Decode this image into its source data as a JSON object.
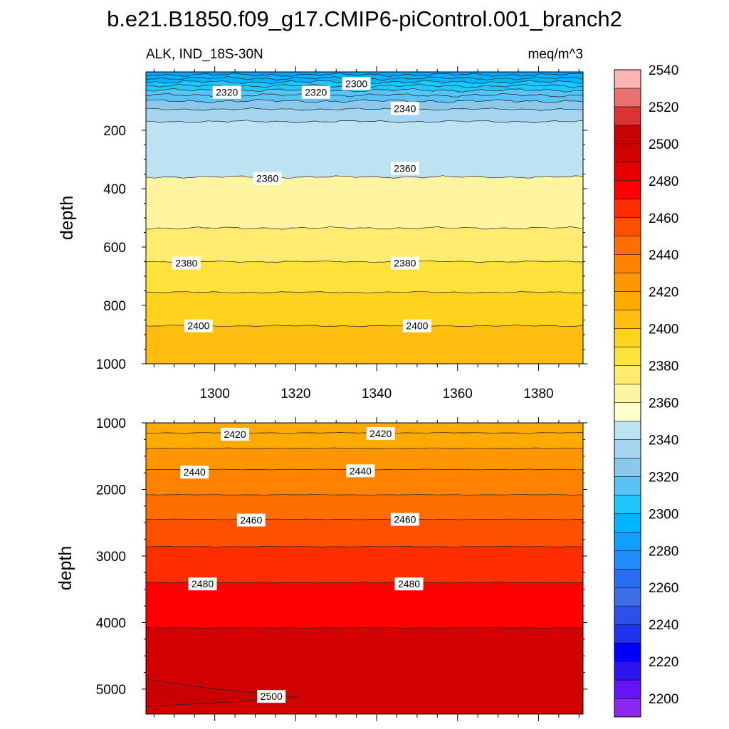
{
  "figure": {
    "title": "b.e21.B1850.f09_g17.CMIP6-piControl.001_branch2",
    "variable_label": "ALK, IND_18S-30N",
    "units_label": "meq/m^3"
  },
  "colors": {
    "palette": [
      "#8c28ef",
      "#6414f5",
      "#2d14f0",
      "#0000ff",
      "#1e32f0",
      "#2d50eb",
      "#3c6ee6",
      "#286ef5",
      "#1e8cff",
      "#0fa0ff",
      "#00b4ff",
      "#1ec8ff",
      "#5ac3f5",
      "#8cc8ec",
      "#a5d5f0",
      "#bde2f2",
      "#ffffcf",
      "#fff5a0",
      "#ffeb70",
      "#ffe13c",
      "#ffd21e",
      "#ffbe0f",
      "#ffaa00",
      "#ff9600",
      "#ff8200",
      "#ff6e00",
      "#ff5000",
      "#ff2d00",
      "#ff0000",
      "#e60000",
      "#d20000",
      "#c80000",
      "#dc3232",
      "#eb7070",
      "#ffb4b4"
    ]
  },
  "chart_data": [
    {
      "type": "contour",
      "panel": "upper",
      "x": [
        1283,
        1391
      ],
      "xticks": [
        1300,
        1320,
        1340,
        1360,
        1380
      ],
      "ylabel": "depth",
      "ylim": [
        0,
        1000
      ],
      "yticks": [
        200,
        400,
        600,
        800,
        1000
      ],
      "contour_depths": [
        {
          "level": 2290,
          "depth": 10
        },
        {
          "level": 2295,
          "depth": 22
        },
        {
          "level": 2300,
          "depth": 35
        },
        {
          "level": 2305,
          "depth": 48
        },
        {
          "level": 2310,
          "depth": 63
        },
        {
          "level": 2315,
          "depth": 80
        },
        {
          "level": 2320,
          "depth": 100
        },
        {
          "level": 2330,
          "depth": 128
        },
        {
          "level": 2340,
          "depth": 170
        },
        {
          "level": 2360,
          "depth": 360
        },
        {
          "level": 2370,
          "depth": 535
        },
        {
          "level": 2380,
          "depth": 650
        },
        {
          "level": 2390,
          "depth": 755
        },
        {
          "level": 2400,
          "depth": 870
        }
      ],
      "bottom_level": 2405,
      "contour_labels": [
        {
          "text": "2320",
          "x": 1303,
          "depth": 70
        },
        {
          "text": "2320",
          "x": 1325,
          "depth": 70
        },
        {
          "text": "2300",
          "x": 1335,
          "depth": 40
        },
        {
          "text": "2340",
          "x": 1347,
          "depth": 125
        },
        {
          "text": "2360",
          "x": 1313,
          "depth": 365
        },
        {
          "text": "2360",
          "x": 1347,
          "depth": 330
        },
        {
          "text": "2380",
          "x": 1293,
          "depth": 655
        },
        {
          "text": "2380",
          "x": 1347,
          "depth": 655
        },
        {
          "text": "2400",
          "x": 1296,
          "depth": 870
        },
        {
          "text": "2400",
          "x": 1350,
          "depth": 870
        }
      ]
    },
    {
      "type": "contour",
      "panel": "lower",
      "x": [
        1283,
        1391
      ],
      "ylabel": "depth",
      "ylim": [
        1000,
        5375
      ],
      "yticks": [
        1000,
        2000,
        3000,
        4000,
        5000
      ],
      "contour_depths": [
        {
          "level": 2415,
          "depth": 1150
        },
        {
          "level": 2420,
          "depth": 1380
        },
        {
          "level": 2430,
          "depth": 1700
        },
        {
          "level": 2440,
          "depth": 2080
        },
        {
          "level": 2450,
          "depth": 2450
        },
        {
          "level": 2460,
          "depth": 2860
        },
        {
          "level": 2470,
          "depth": 3400
        },
        {
          "level": 2480,
          "depth": 4080
        }
      ],
      "top_level": 2412,
      "bottom_level": 2490,
      "wedge_level": 2500,
      "contour_labels": [
        {
          "text": "2420",
          "x": 1305,
          "depth": 1170
        },
        {
          "text": "2420",
          "x": 1341,
          "depth": 1160
        },
        {
          "text": "2440",
          "x": 1295,
          "depth": 1740
        },
        {
          "text": "2440",
          "x": 1336,
          "depth": 1720
        },
        {
          "text": "2460",
          "x": 1309,
          "depth": 2460
        },
        {
          "text": "2460",
          "x": 1347,
          "depth": 2450
        },
        {
          "text": "2480",
          "x": 1297,
          "depth": 3420
        },
        {
          "text": "2480",
          "x": 1348,
          "depth": 3420
        },
        {
          "text": "2500",
          "x": 1314,
          "depth": 5110
        }
      ]
    },
    {
      "type": "colorbar",
      "levels_min": 2190,
      "levels_max": 2560,
      "step": 10,
      "tick_labels": [
        "2200",
        "2220",
        "2240",
        "2260",
        "2280",
        "2300",
        "2320",
        "2340",
        "2360",
        "2380",
        "2400",
        "2420",
        "2440",
        "2460",
        "2480",
        "2500",
        "2520",
        "2540"
      ]
    }
  ]
}
